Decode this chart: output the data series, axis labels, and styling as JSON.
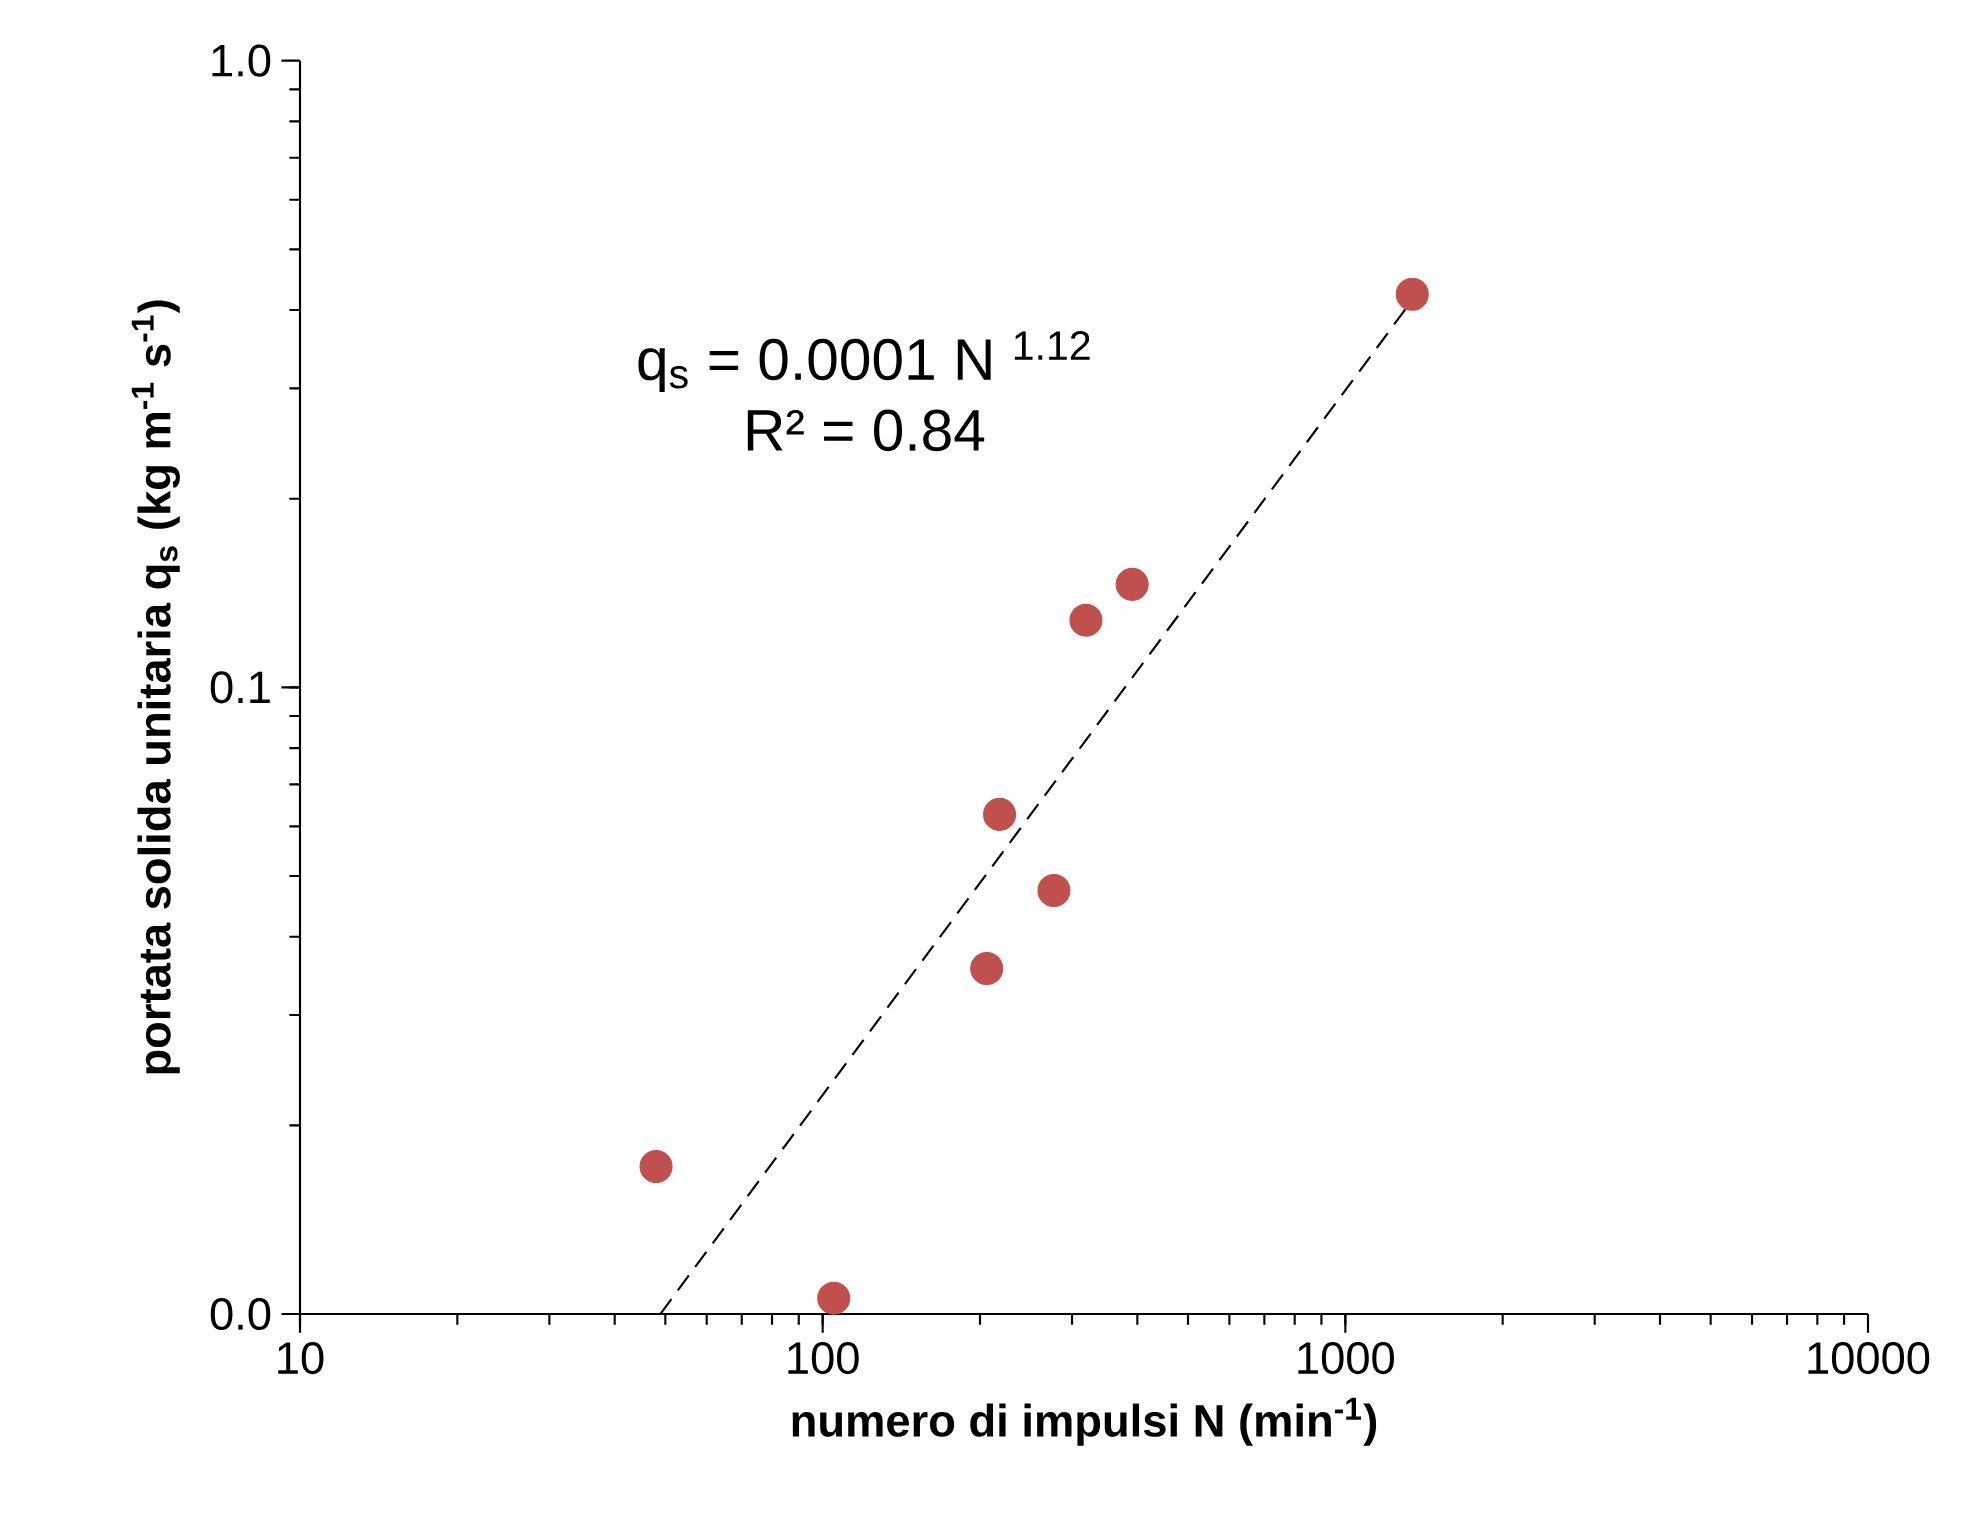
{
  "chart_data": {
    "type": "scatter",
    "xlabel": "numero di impulsi N (min$^{-1}$)",
    "ylabel": "portata solida unitaria q$_{s}$ (kg m$^{-1}$ s$^{-1}$)",
    "log": "xy",
    "xlim": [
      10,
      10000
    ],
    "ylim": [
      0.01,
      1
    ],
    "xticks": [
      10,
      100,
      1000,
      10000
    ],
    "yticks": [
      {
        "value": 0.01,
        "label": "0.0"
      },
      {
        "value": 0.1,
        "label": "0.1"
      },
      {
        "value": 1,
        "label": "1.0"
      }
    ],
    "annotations": [
      "q$_{s}$ = 0.0001 N $^{1.12}$",
      "R² = 0.84"
    ],
    "series": [
      {
        "color": "#c0504d",
        "marker": "circle",
        "x": [
          48,
          105,
          206,
          218,
          277,
          319,
          391,
          1343
        ],
        "values": [
          0.0172,
          0.0106,
          0.0356,
          0.0627,
          0.0474,
          0.128,
          0.146,
          0.424
        ]
      },
      {
        "type": "line",
        "color": "#000000",
        "marker": "none",
        "line_style": "dashed",
        "x": [
          48.9,
          1343
        ],
        "values": [
          0.01,
          0.415
        ]
      }
    ]
  }
}
